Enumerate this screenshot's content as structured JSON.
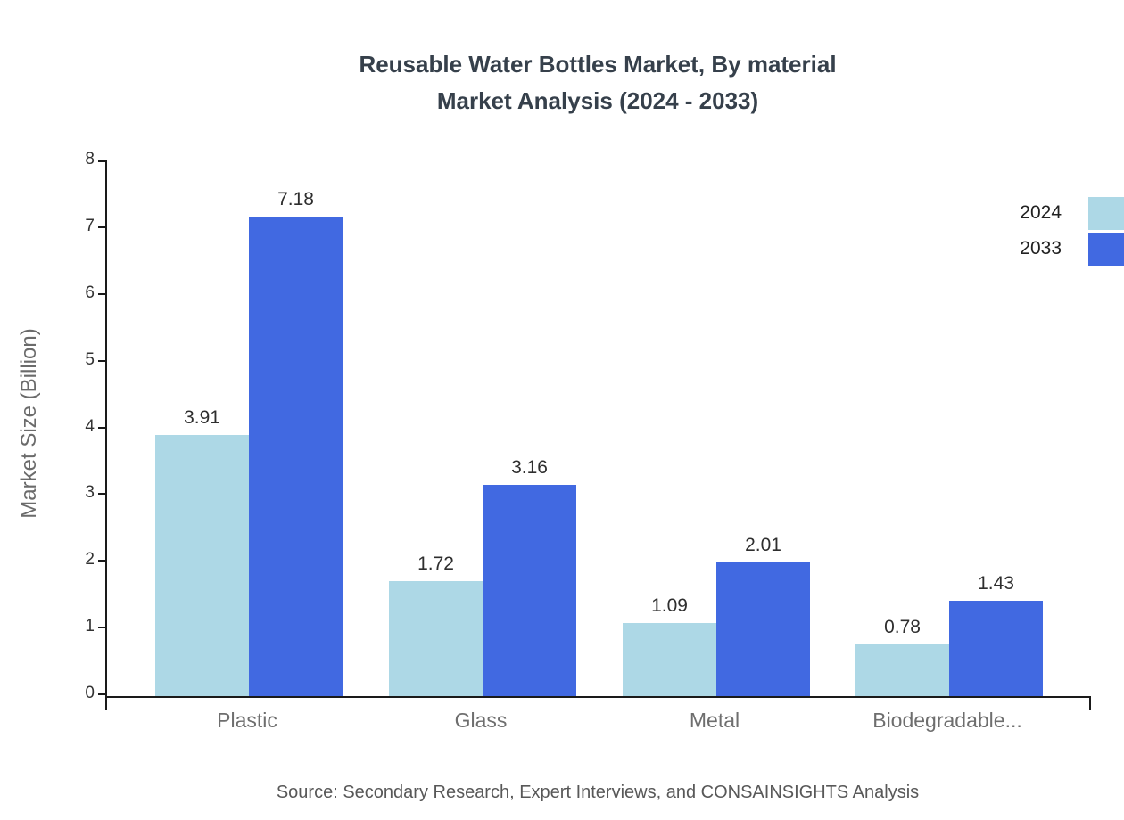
{
  "title_line1": "Reusable Water Bottles Market, By material",
  "title_line2": "Market Analysis (2024 - 2033)",
  "ylabel": "Market Size (Billion)",
  "source": "Source: Secondary Research, Expert Interviews, and CONSAINSIGHTS Analysis",
  "colors": {
    "series_2024": "#ADD8E6",
    "series_2033": "#4169E1",
    "axis": "#1a1a1a"
  },
  "chart_data": {
    "type": "bar",
    "categories": [
      "Plastic",
      "Glass",
      "Metal",
      "Biodegradable..."
    ],
    "series": [
      {
        "name": "2024",
        "color": "#ADD8E6",
        "values": [
          3.91,
          1.72,
          1.09,
          0.78
        ]
      },
      {
        "name": "2033",
        "color": "#4169E1",
        "values": [
          7.18,
          3.16,
          2.01,
          1.43
        ]
      }
    ],
    "title": "Reusable Water Bottles Market, By material Market Analysis (2024 - 2033)",
    "xlabel": "",
    "ylabel": "Market Size (Billion)",
    "ylim": [
      0,
      8
    ],
    "yticks": [
      0,
      1,
      2,
      3,
      4,
      5,
      6,
      7,
      8
    ],
    "grid": false,
    "legend_position": "top-right",
    "value_labels": true
  }
}
